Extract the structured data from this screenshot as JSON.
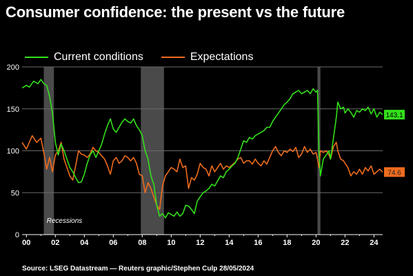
{
  "title": "Consumer confidence: the present vs the future",
  "source": "Source: LSEG Datastream — Reuters graphic/Stephen Culp 28/05/2024",
  "legend": {
    "current": "Current conditions",
    "expectations": "Expectations"
  },
  "colors": {
    "background": "#000000",
    "current": "#33e01a",
    "expectations": "#ef6c1e",
    "recession": "#4a4a4a",
    "grid": "#6a6a6a"
  },
  "chart_data": {
    "type": "line",
    "xlabel": "",
    "ylabel": "",
    "xlim": [
      1999.7,
      2024.6
    ],
    "ylim": [
      0,
      200
    ],
    "yticks": [
      0,
      50,
      100,
      150,
      200
    ],
    "xticks": [
      {
        "value": 2000,
        "label": "00"
      },
      {
        "value": 2002,
        "label": "02"
      },
      {
        "value": 2004,
        "label": "04"
      },
      {
        "value": 2006,
        "label": "06"
      },
      {
        "value": 2008,
        "label": "08"
      },
      {
        "value": 2010,
        "label": "10"
      },
      {
        "value": 2012,
        "label": "12"
      },
      {
        "value": 2014,
        "label": "14"
      },
      {
        "value": 2016,
        "label": "16"
      },
      {
        "value": 2018,
        "label": "18"
      },
      {
        "value": 2020,
        "label": "20"
      },
      {
        "value": 2022,
        "label": "22"
      },
      {
        "value": 2024,
        "label": "24"
      }
    ],
    "grid": true,
    "legend_position": "top-left",
    "recessions": [
      {
        "start": 2001.2,
        "end": 2001.9
      },
      {
        "start": 2007.9,
        "end": 2009.5
      },
      {
        "start": 2020.1,
        "end": 2020.3
      }
    ],
    "recession_label": "Recessions",
    "series": [
      {
        "name": "Current conditions",
        "last_value_label": "143.1",
        "points": [
          [
            1999.7,
            175
          ],
          [
            2000.0,
            178
          ],
          [
            2000.2,
            176
          ],
          [
            2000.5,
            183
          ],
          [
            2000.8,
            180
          ],
          [
            2001.0,
            185
          ],
          [
            2001.2,
            180
          ],
          [
            2001.4,
            178
          ],
          [
            2001.6,
            165
          ],
          [
            2001.8,
            145
          ],
          [
            2002.0,
            110
          ],
          [
            2002.2,
            95
          ],
          [
            2002.4,
            108
          ],
          [
            2002.6,
            100
          ],
          [
            2002.8,
            90
          ],
          [
            2003.0,
            80
          ],
          [
            2003.2,
            75
          ],
          [
            2003.4,
            68
          ],
          [
            2003.6,
            62
          ],
          [
            2003.8,
            63
          ],
          [
            2004.0,
            72
          ],
          [
            2004.2,
            85
          ],
          [
            2004.4,
            95
          ],
          [
            2004.6,
            100
          ],
          [
            2004.8,
            92
          ],
          [
            2005.0,
            100
          ],
          [
            2005.2,
            108
          ],
          [
            2005.4,
            120
          ],
          [
            2005.6,
            130
          ],
          [
            2005.8,
            138
          ],
          [
            2006.0,
            126
          ],
          [
            2006.2,
            122
          ],
          [
            2006.4,
            128
          ],
          [
            2006.6,
            134
          ],
          [
            2006.8,
            138
          ],
          [
            2007.0,
            135
          ],
          [
            2007.2,
            133
          ],
          [
            2007.4,
            138
          ],
          [
            2007.6,
            130
          ],
          [
            2007.8,
            125
          ],
          [
            2008.0,
            118
          ],
          [
            2008.2,
            100
          ],
          [
            2008.4,
            90
          ],
          [
            2008.6,
            70
          ],
          [
            2008.8,
            60
          ],
          [
            2009.0,
            35
          ],
          [
            2009.2,
            22
          ],
          [
            2009.4,
            25
          ],
          [
            2009.6,
            20
          ],
          [
            2009.8,
            26
          ],
          [
            2010.0,
            24
          ],
          [
            2010.2,
            22
          ],
          [
            2010.4,
            27
          ],
          [
            2010.6,
            22
          ],
          [
            2010.8,
            25
          ],
          [
            2011.0,
            35
          ],
          [
            2011.2,
            34
          ],
          [
            2011.4,
            30
          ],
          [
            2011.6,
            25
          ],
          [
            2011.8,
            40
          ],
          [
            2012.0,
            45
          ],
          [
            2012.2,
            50
          ],
          [
            2012.4,
            52
          ],
          [
            2012.6,
            55
          ],
          [
            2012.8,
            60
          ],
          [
            2013.0,
            58
          ],
          [
            2013.2,
            64
          ],
          [
            2013.4,
            70
          ],
          [
            2013.6,
            68
          ],
          [
            2013.8,
            75
          ],
          [
            2014.0,
            78
          ],
          [
            2014.2,
            82
          ],
          [
            2014.4,
            85
          ],
          [
            2014.6,
            92
          ],
          [
            2014.8,
            102
          ],
          [
            2015.0,
            112
          ],
          [
            2015.2,
            110
          ],
          [
            2015.4,
            116
          ],
          [
            2015.6,
            114
          ],
          [
            2015.8,
            118
          ],
          [
            2016.0,
            120
          ],
          [
            2016.2,
            122
          ],
          [
            2016.4,
            124
          ],
          [
            2016.6,
            128
          ],
          [
            2016.8,
            128
          ],
          [
            2017.0,
            135
          ],
          [
            2017.2,
            140
          ],
          [
            2017.4,
            145
          ],
          [
            2017.6,
            150
          ],
          [
            2017.8,
            155
          ],
          [
            2018.0,
            158
          ],
          [
            2018.2,
            162
          ],
          [
            2018.4,
            168
          ],
          [
            2018.6,
            170
          ],
          [
            2018.8,
            172
          ],
          [
            2019.0,
            168
          ],
          [
            2019.2,
            170
          ],
          [
            2019.4,
            172
          ],
          [
            2019.6,
            168
          ],
          [
            2019.8,
            174
          ],
          [
            2020.0,
            170
          ],
          [
            2020.1,
            172
          ],
          [
            2020.2,
            100
          ],
          [
            2020.3,
            70
          ],
          [
            2020.5,
            90
          ],
          [
            2020.7,
            95
          ],
          [
            2020.9,
            100
          ],
          [
            2021.0,
            90
          ],
          [
            2021.2,
            115
          ],
          [
            2021.4,
            140
          ],
          [
            2021.5,
            158
          ],
          [
            2021.7,
            150
          ],
          [
            2021.9,
            152
          ],
          [
            2022.0,
            145
          ],
          [
            2022.2,
            150
          ],
          [
            2022.4,
            146
          ],
          [
            2022.6,
            140
          ],
          [
            2022.8,
            148
          ],
          [
            2023.0,
            146
          ],
          [
            2023.2,
            150
          ],
          [
            2023.4,
            148
          ],
          [
            2023.6,
            152
          ],
          [
            2023.8,
            144
          ],
          [
            2024.0,
            150
          ],
          [
            2024.2,
            140
          ],
          [
            2024.4,
            146
          ],
          [
            2024.6,
            143.1
          ]
        ]
      },
      {
        "name": "Expectations",
        "last_value_label": "74.6",
        "points": [
          [
            1999.7,
            110
          ],
          [
            2000.0,
            102
          ],
          [
            2000.2,
            110
          ],
          [
            2000.4,
            118
          ],
          [
            2000.7,
            110
          ],
          [
            2001.0,
            115
          ],
          [
            2001.2,
            98
          ],
          [
            2001.4,
            78
          ],
          [
            2001.6,
            92
          ],
          [
            2001.8,
            75
          ],
          [
            2002.0,
            95
          ],
          [
            2002.2,
            100
          ],
          [
            2002.4,
            110
          ],
          [
            2002.6,
            90
          ],
          [
            2002.8,
            80
          ],
          [
            2003.0,
            70
          ],
          [
            2003.2,
            65
          ],
          [
            2003.4,
            82
          ],
          [
            2003.6,
            100
          ],
          [
            2003.8,
            96
          ],
          [
            2004.0,
            95
          ],
          [
            2004.2,
            92
          ],
          [
            2004.4,
            96
          ],
          [
            2004.6,
            104
          ],
          [
            2004.8,
            100
          ],
          [
            2005.0,
            98
          ],
          [
            2005.2,
            94
          ],
          [
            2005.4,
            90
          ],
          [
            2005.6,
            82
          ],
          [
            2005.8,
            72
          ],
          [
            2006.0,
            88
          ],
          [
            2006.2,
            92
          ],
          [
            2006.4,
            85
          ],
          [
            2006.6,
            88
          ],
          [
            2006.8,
            94
          ],
          [
            2007.0,
            92
          ],
          [
            2007.2,
            88
          ],
          [
            2007.4,
            92
          ],
          [
            2007.6,
            85
          ],
          [
            2007.8,
            72
          ],
          [
            2008.0,
            70
          ],
          [
            2008.2,
            50
          ],
          [
            2008.4,
            62
          ],
          [
            2008.6,
            55
          ],
          [
            2008.8,
            45
          ],
          [
            2009.0,
            35
          ],
          [
            2009.2,
            30
          ],
          [
            2009.4,
            58
          ],
          [
            2009.6,
            70
          ],
          [
            2009.8,
            75
          ],
          [
            2010.0,
            80
          ],
          [
            2010.2,
            78
          ],
          [
            2010.4,
            75
          ],
          [
            2010.6,
            90
          ],
          [
            2010.8,
            80
          ],
          [
            2011.0,
            82
          ],
          [
            2011.2,
            55
          ],
          [
            2011.4,
            68
          ],
          [
            2011.6,
            65
          ],
          [
            2011.8,
            72
          ],
          [
            2012.0,
            85
          ],
          [
            2012.2,
            80
          ],
          [
            2012.4,
            78
          ],
          [
            2012.6,
            70
          ],
          [
            2012.8,
            82
          ],
          [
            2013.0,
            75
          ],
          [
            2013.2,
            80
          ],
          [
            2013.4,
            85
          ],
          [
            2013.6,
            78
          ],
          [
            2013.8,
            82
          ],
          [
            2014.0,
            80
          ],
          [
            2014.2,
            83
          ],
          [
            2014.4,
            86
          ],
          [
            2014.6,
            90
          ],
          [
            2014.8,
            92
          ],
          [
            2015.0,
            85
          ],
          [
            2015.2,
            88
          ],
          [
            2015.4,
            88
          ],
          [
            2015.6,
            84
          ],
          [
            2015.8,
            90
          ],
          [
            2016.0,
            85
          ],
          [
            2016.2,
            82
          ],
          [
            2016.4,
            88
          ],
          [
            2016.6,
            84
          ],
          [
            2016.8,
            92
          ],
          [
            2017.0,
            100
          ],
          [
            2017.2,
            105
          ],
          [
            2017.4,
            98
          ],
          [
            2017.6,
            94
          ],
          [
            2017.8,
            100
          ],
          [
            2018.0,
            98
          ],
          [
            2018.2,
            102
          ],
          [
            2018.4,
            99
          ],
          [
            2018.6,
            104
          ],
          [
            2018.8,
            92
          ],
          [
            2019.0,
            96
          ],
          [
            2019.2,
            105
          ],
          [
            2019.4,
            98
          ],
          [
            2019.6,
            102
          ],
          [
            2019.8,
            96
          ],
          [
            2020.0,
            98
          ],
          [
            2020.1,
            90
          ],
          [
            2020.2,
            80
          ],
          [
            2020.3,
            100
          ],
          [
            2020.5,
            98
          ],
          [
            2020.7,
            100
          ],
          [
            2020.9,
            95
          ],
          [
            2021.0,
            90
          ],
          [
            2021.2,
            105
          ],
          [
            2021.4,
            110
          ],
          [
            2021.5,
            100
          ],
          [
            2021.7,
            90
          ],
          [
            2021.9,
            88
          ],
          [
            2022.0,
            85
          ],
          [
            2022.2,
            80
          ],
          [
            2022.4,
            70
          ],
          [
            2022.6,
            75
          ],
          [
            2022.8,
            72
          ],
          [
            2023.0,
            78
          ],
          [
            2023.2,
            72
          ],
          [
            2023.4,
            80
          ],
          [
            2023.6,
            76
          ],
          [
            2023.8,
            82
          ],
          [
            2024.0,
            72
          ],
          [
            2024.2,
            75
          ],
          [
            2024.4,
            78
          ],
          [
            2024.6,
            74.6
          ]
        ]
      }
    ]
  }
}
